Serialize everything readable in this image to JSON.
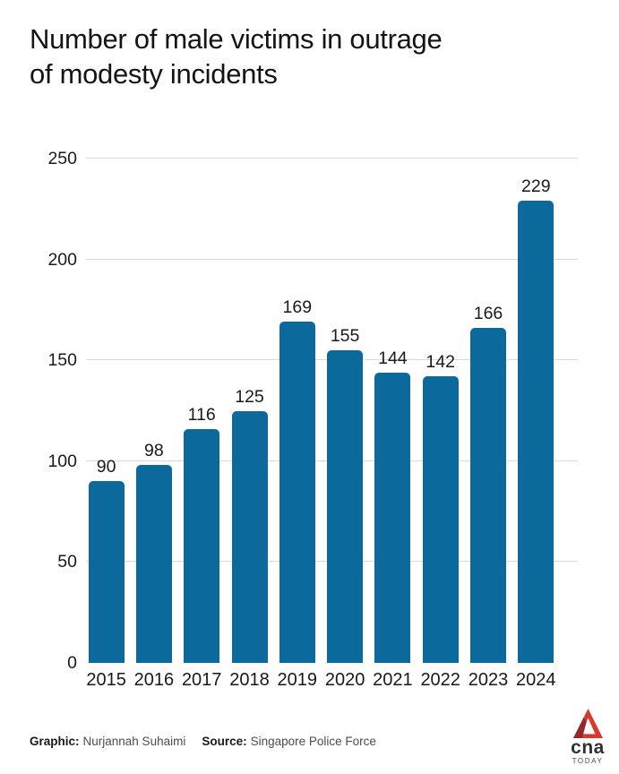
{
  "title_lines": [
    "Number of male victims in outrage",
    "of modesty incidents"
  ],
  "chart_data": {
    "type": "bar",
    "title": "Number of male victims in outrage of modesty incidents",
    "categories": [
      "2015",
      "2016",
      "2017",
      "2018",
      "2019",
      "2020",
      "2021",
      "2022",
      "2023",
      "2024"
    ],
    "values": [
      90,
      98,
      116,
      125,
      169,
      155,
      144,
      142,
      166,
      229
    ],
    "xlabel": "",
    "ylabel": "",
    "ylim": [
      0,
      250
    ],
    "yticks": [
      0,
      50,
      100,
      150,
      200,
      250
    ],
    "grid": true,
    "gridline_values": [
      50,
      100,
      150,
      200,
      250
    ],
    "legend": false,
    "data_labels": true,
    "bar_color": "#0b699c",
    "gridline_color": "#d9d9d9",
    "label_color": "#1a1a1a"
  },
  "footer": {
    "graphic_label": "Graphic:",
    "graphic_value": "Nurjannah Suhaimi",
    "source_label": "Source:",
    "source_value": "Singapore Police Force"
  },
  "logo": {
    "brand": "cna",
    "tagline": "TODAY",
    "red": "#d8382e",
    "dark_red": "#94282a"
  }
}
